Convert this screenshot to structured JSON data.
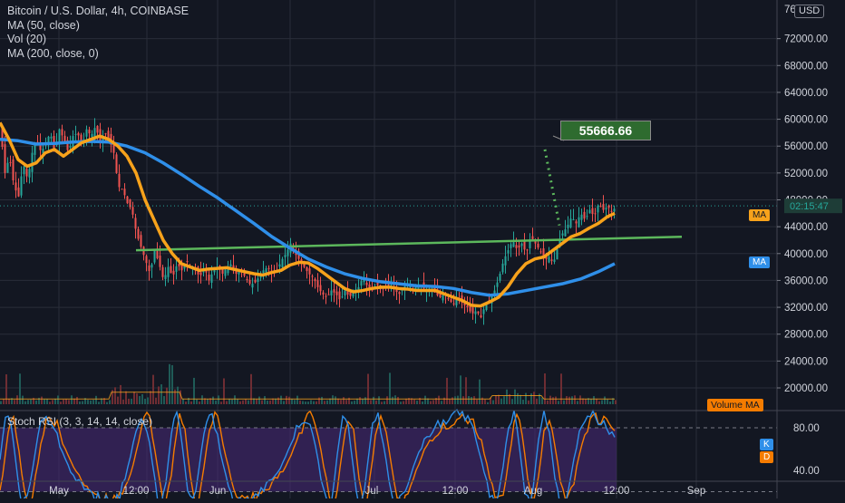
{
  "legend": {
    "title": "Bitcoin / U.S. Dollar, 4h, COINBASE",
    "line2": "MA (50, close)",
    "line3": "Vol (20)",
    "line4": "MA (200, close, 0)"
  },
  "currency_button": "USD",
  "price_axis_top_partial": "76",
  "countdown": "02:15:47",
  "badges": {
    "ma50": "MA",
    "ma200": "MA",
    "volume_ma": "Volume MA",
    "k": "K",
    "d": "D"
  },
  "callout_value": "55666.66",
  "rsi_title": "Stoch RSI (3, 3, 14, 14, close)",
  "colors": {
    "background": "#131722",
    "up": "#26a69a",
    "down": "#ef5350",
    "ma50": "#f7a21b",
    "ma200": "#2f8fe9",
    "trendline": "#5cb85c",
    "rsi_k": "#2f8fe9",
    "rsi_d": "#f57c00",
    "rsi_band": "#4a2a7a",
    "callout_bg": "#2e6b2f"
  },
  "chart_data": [
    {
      "type": "line",
      "title": "Bitcoin / U.S. Dollar, 4h, COINBASE",
      "x_ticks": [
        "May",
        "12:00",
        "Jun",
        "Jul",
        "12:00",
        "Aug",
        "12:00",
        "Sep"
      ],
      "y_ticks": [
        72000,
        68000,
        64000,
        60000,
        56000,
        52000,
        48000,
        44000,
        40000,
        36000,
        32000,
        28000,
        24000,
        20000
      ],
      "ylim": [
        17000,
        76500
      ],
      "price_path": [
        [
          0,
          58500
        ],
        [
          5,
          52000
        ],
        [
          10,
          54500
        ],
        [
          15,
          50000
        ],
        [
          20,
          48500
        ],
        [
          25,
          53500
        ],
        [
          30,
          51000
        ],
        [
          35,
          55000
        ],
        [
          40,
          57000
        ],
        [
          45,
          55000
        ],
        [
          50,
          56500
        ],
        [
          55,
          58000
        ],
        [
          60,
          55000
        ],
        [
          65,
          58500
        ],
        [
          70,
          57000
        ],
        [
          75,
          55000
        ],
        [
          80,
          57500
        ],
        [
          85,
          58000
        ],
        [
          90,
          56000
        ],
        [
          95,
          58500
        ],
        [
          100,
          57500
        ],
        [
          105,
          59000
        ],
        [
          110,
          56500
        ],
        [
          115,
          58000
        ],
        [
          120,
          57000
        ],
        [
          125,
          55000
        ],
        [
          130,
          50000
        ],
        [
          135,
          49500
        ],
        [
          140,
          47500
        ],
        [
          145,
          46500
        ],
        [
          150,
          43000
        ],
        [
          155,
          41000
        ],
        [
          160,
          39000
        ],
        [
          165,
          37000
        ],
        [
          170,
          40500
        ],
        [
          175,
          38500
        ],
        [
          180,
          36000
        ],
        [
          185,
          38000
        ],
        [
          190,
          36500
        ],
        [
          195,
          38500
        ],
        [
          200,
          37500
        ],
        [
          205,
          39000
        ],
        [
          210,
          38000
        ],
        [
          215,
          37500
        ],
        [
          220,
          36500
        ],
        [
          225,
          38000
        ],
        [
          230,
          36000
        ],
        [
          235,
          37500
        ],
        [
          240,
          38000
        ],
        [
          245,
          37000
        ],
        [
          250,
          38000
        ],
        [
          255,
          38500
        ],
        [
          260,
          37000
        ],
        [
          265,
          37500
        ],
        [
          270,
          36500
        ],
        [
          275,
          35500
        ],
        [
          280,
          35500
        ],
        [
          285,
          36500
        ],
        [
          290,
          37500
        ],
        [
          295,
          38000
        ],
        [
          300,
          37000
        ],
        [
          305,
          37500
        ],
        [
          310,
          39000
        ],
        [
          315,
          40000
        ],
        [
          320,
          41500
        ],
        [
          325,
          40000
        ],
        [
          330,
          39000
        ],
        [
          335,
          38000
        ],
        [
          340,
          37000
        ],
        [
          345,
          36500
        ],
        [
          350,
          35000
        ],
        [
          355,
          34000
        ],
        [
          360,
          33500
        ],
        [
          365,
          34500
        ],
        [
          370,
          34000
        ],
        [
          375,
          33000
        ],
        [
          380,
          34500
        ],
        [
          385,
          33500
        ],
        [
          390,
          34500
        ],
        [
          395,
          35000
        ],
        [
          400,
          36500
        ],
        [
          405,
          35000
        ],
        [
          410,
          34500
        ],
        [
          415,
          35500
        ],
        [
          420,
          34500
        ],
        [
          425,
          35000
        ],
        [
          430,
          35500
        ],
        [
          435,
          34500
        ],
        [
          440,
          34000
        ],
        [
          445,
          35000
        ],
        [
          450,
          35500
        ],
        [
          455,
          34500
        ],
        [
          460,
          35500
        ],
        [
          465,
          35000
        ],
        [
          470,
          34500
        ],
        [
          475,
          35000
        ],
        [
          480,
          34000
        ],
        [
          485,
          33500
        ],
        [
          490,
          34000
        ],
        [
          495,
          33000
        ],
        [
          500,
          32500
        ],
        [
          505,
          33500
        ],
        [
          510,
          32500
        ],
        [
          515,
          32000
        ],
        [
          520,
          31000
        ],
        [
          525,
          31500
        ],
        [
          530,
          30500
        ],
        [
          535,
          32500
        ],
        [
          540,
          33000
        ],
        [
          545,
          34500
        ],
        [
          550,
          36500
        ],
        [
          555,
          39000
        ],
        [
          560,
          40500
        ],
        [
          565,
          42000
        ],
        [
          570,
          40500
        ],
        [
          575,
          41500
        ],
        [
          580,
          40000
        ],
        [
          585,
          42500
        ],
        [
          590,
          41500
        ],
        [
          595,
          40500
        ],
        [
          600,
          39000
        ],
        [
          605,
          39500
        ],
        [
          610,
          38500
        ],
        [
          615,
          41500
        ],
        [
          620,
          43000
        ],
        [
          625,
          44000
        ],
        [
          630,
          45500
        ],
        [
          635,
          44500
        ],
        [
          640,
          46000
        ],
        [
          645,
          45000
        ],
        [
          650,
          46500
        ],
        [
          655,
          45500
        ],
        [
          660,
          47500
        ],
        [
          665,
          46500
        ],
        [
          670,
          47000
        ],
        [
          675,
          46000
        ],
        [
          678,
          47000
        ]
      ],
      "series": [
        {
          "name": "MA (50, close)",
          "values": [
            [
              0,
              59500
            ],
            [
              10,
              57000
            ],
            [
              20,
              54000
            ],
            [
              30,
              53000
            ],
            [
              40,
              53500
            ],
            [
              50,
              55000
            ],
            [
              60,
              55500
            ],
            [
              70,
              54500
            ],
            [
              80,
              55500
            ],
            [
              90,
              56500
            ],
            [
              100,
              57000
            ],
            [
              110,
              57500
            ],
            [
              120,
              57000
            ],
            [
              130,
              56000
            ],
            [
              140,
              54500
            ],
            [
              150,
              52000
            ],
            [
              160,
              48000
            ],
            [
              170,
              45000
            ],
            [
              180,
              42000
            ],
            [
              190,
              40000
            ],
            [
              200,
              38500
            ],
            [
              210,
              38000
            ],
            [
              220,
              37500
            ],
            [
              230,
              37700
            ],
            [
              240,
              37800
            ],
            [
              250,
              37900
            ],
            [
              260,
              37600
            ],
            [
              270,
              37300
            ],
            [
              280,
              37000
            ],
            [
              290,
              36800
            ],
            [
              300,
              37200
            ],
            [
              310,
              37500
            ],
            [
              320,
              38300
            ],
            [
              330,
              38700
            ],
            [
              340,
              38600
            ],
            [
              350,
              37800
            ],
            [
              360,
              36800
            ],
            [
              370,
              35800
            ],
            [
              380,
              34800
            ],
            [
              390,
              34300
            ],
            [
              400,
              34500
            ],
            [
              410,
              34800
            ],
            [
              420,
              35000
            ],
            [
              430,
              35000
            ],
            [
              440,
              34800
            ],
            [
              450,
              34700
            ],
            [
              460,
              34500
            ],
            [
              470,
              34500
            ],
            [
              480,
              34500
            ],
            [
              490,
              34000
            ],
            [
              500,
              33500
            ],
            [
              510,
              33000
            ],
            [
              520,
              32300
            ],
            [
              530,
              32200
            ],
            [
              540,
              32800
            ],
            [
              550,
              33500
            ],
            [
              560,
              35000
            ],
            [
              570,
              37000
            ],
            [
              580,
              38500
            ],
            [
              590,
              39200
            ],
            [
              600,
              39500
            ],
            [
              610,
              40500
            ],
            [
              620,
              41500
            ],
            [
              630,
              42500
            ],
            [
              640,
              43000
            ],
            [
              650,
              43800
            ],
            [
              660,
              44500
            ],
            [
              670,
              45500
            ],
            [
              678,
              46000
            ]
          ]
        },
        {
          "name": "MA (200, close, 0)",
          "values": [
            [
              0,
              57000
            ],
            [
              20,
              56800
            ],
            [
              40,
              56300
            ],
            [
              60,
              56400
            ],
            [
              80,
              56600
            ],
            [
              100,
              56700
            ],
            [
              120,
              56600
            ],
            [
              140,
              56000
            ],
            [
              160,
              55000
            ],
            [
              180,
              53500
            ],
            [
              200,
              51800
            ],
            [
              220,
              50000
            ],
            [
              240,
              48300
            ],
            [
              260,
              46400
            ],
            [
              280,
              44500
            ],
            [
              300,
              42500
            ],
            [
              320,
              40800
            ],
            [
              340,
              39200
            ],
            [
              360,
              38000
            ],
            [
              380,
              37000
            ],
            [
              400,
              36300
            ],
            [
              420,
              35800
            ],
            [
              440,
              35500
            ],
            [
              460,
              35200
            ],
            [
              480,
              35100
            ],
            [
              500,
              34800
            ],
            [
              520,
              34200
            ],
            [
              540,
              33800
            ],
            [
              560,
              34000
            ],
            [
              580,
              34500
            ],
            [
              600,
              35000
            ],
            [
              620,
              35500
            ],
            [
              640,
              36200
            ],
            [
              660,
              37300
            ],
            [
              678,
              38500
            ]
          ]
        }
      ],
      "trendline": [
        [
          150,
          40500
        ],
        [
          752,
          42500
        ]
      ],
      "projection": [
        [
          601,
          55500
        ],
        [
          617,
          44200
        ]
      ],
      "last_price_line": 47100
    },
    {
      "type": "area",
      "title": "Vol (20)",
      "series": [
        {
          "name": "Volume MA"
        }
      ]
    },
    {
      "type": "line",
      "title": "Stoch RSI (3, 3, 14, 14, close)",
      "y_ticks": [
        80,
        40
      ],
      "ylim": [
        0,
        100
      ],
      "band": [
        20,
        80
      ],
      "series": [
        {
          "name": "K"
        },
        {
          "name": "D"
        }
      ]
    }
  ]
}
